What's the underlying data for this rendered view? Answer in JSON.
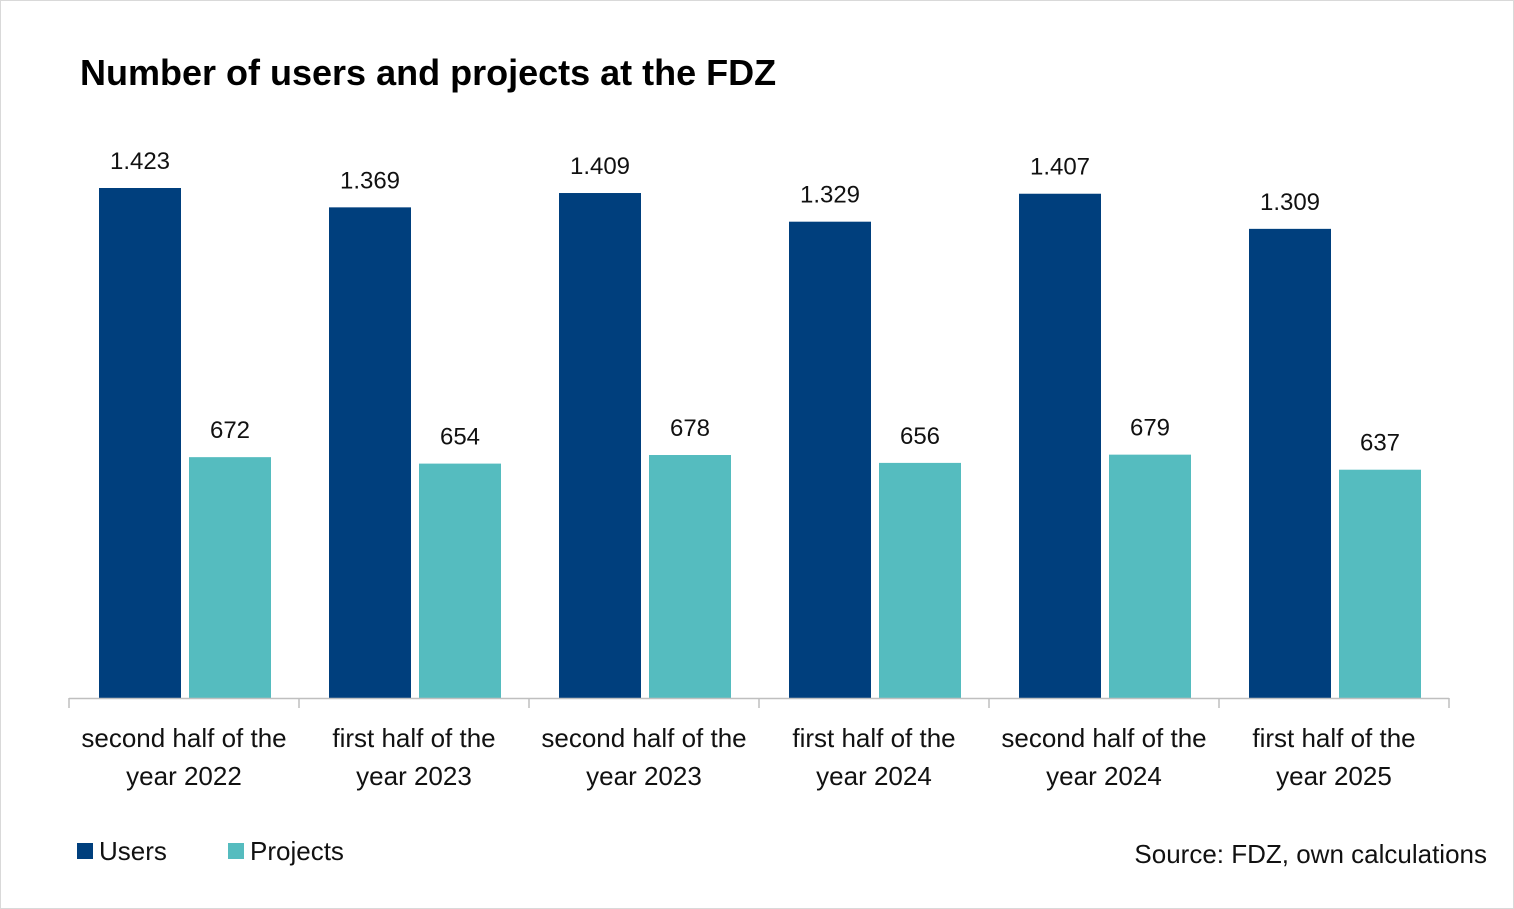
{
  "chart_data": {
    "type": "bar",
    "title": "Number of users and projects at the FDZ",
    "categories": [
      [
        "second half of the",
        "year  2022"
      ],
      [
        "first half of the",
        "year  2023"
      ],
      [
        "second half of the",
        "year  2023"
      ],
      [
        "first half of the",
        "year  2024"
      ],
      [
        "second half of the",
        "year  2024"
      ],
      [
        "first half of the",
        "year  2025"
      ]
    ],
    "series": [
      {
        "name": "Users",
        "color": "#003f7d",
        "values": [
          1423,
          1369,
          1409,
          1329,
          1407,
          1309
        ],
        "labels": [
          "1.423",
          "1.369",
          "1.409",
          "1.329",
          "1.407",
          "1.309"
        ]
      },
      {
        "name": "Projects",
        "color": "#55bcbf",
        "values": [
          672,
          654,
          678,
          656,
          679,
          637
        ],
        "labels": [
          "672",
          "654",
          "678",
          "656",
          "679",
          "637"
        ]
      }
    ],
    "ylim": [
      0,
      1600
    ],
    "xlabel": "",
    "ylabel": "",
    "grid": false,
    "legend_position": "bottom-left",
    "source": "Source: FDZ, own calculations"
  }
}
